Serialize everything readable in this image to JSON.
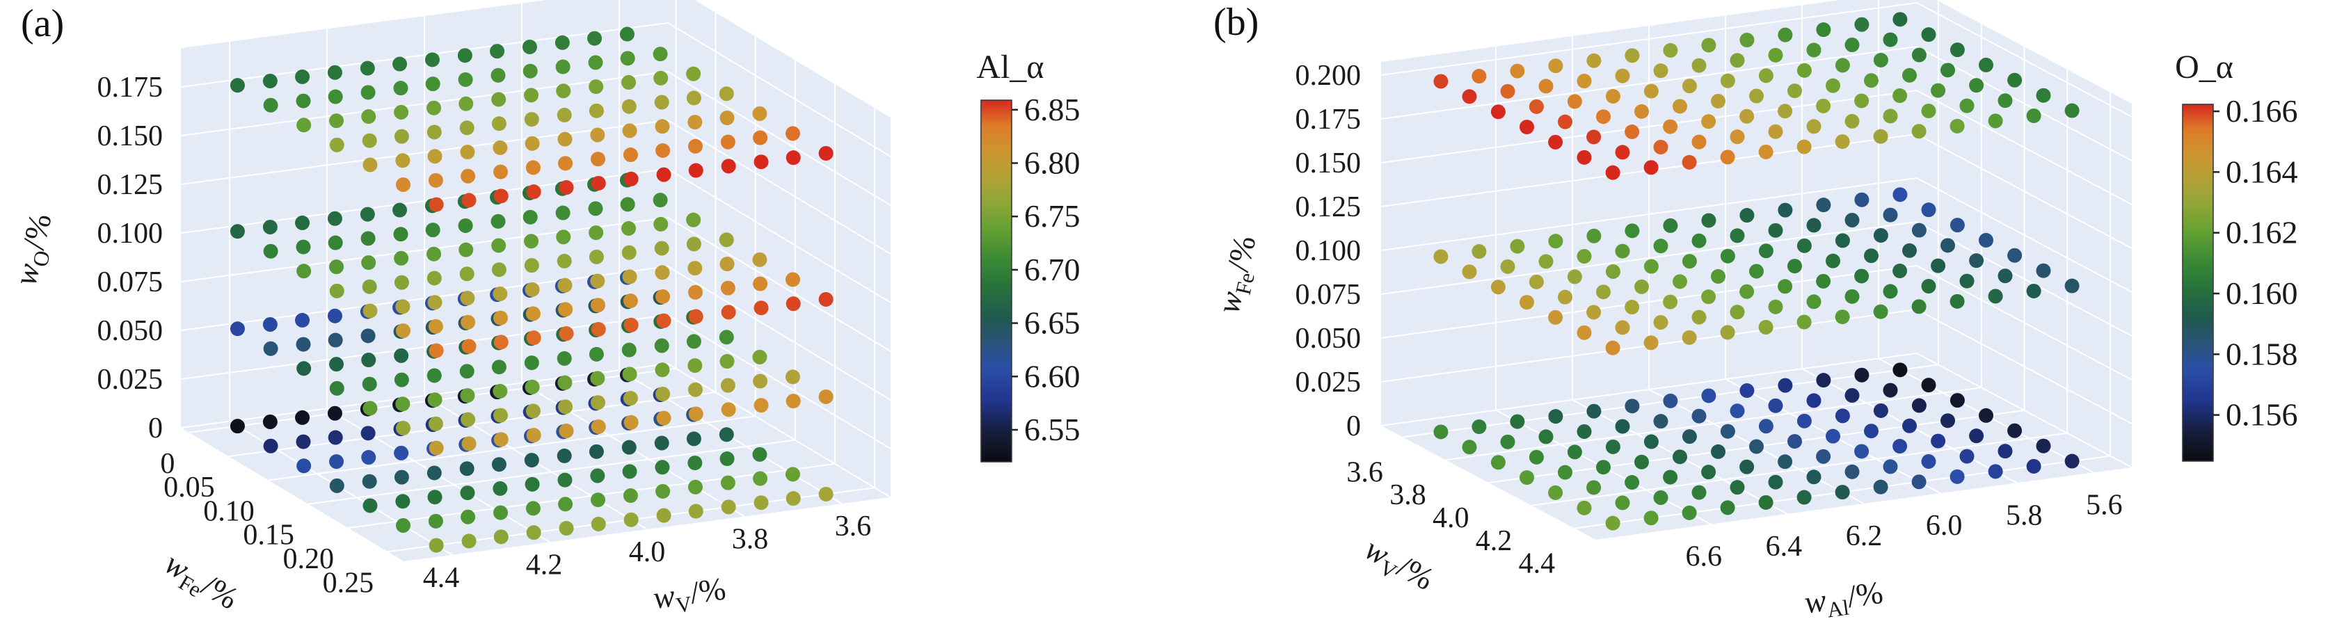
{
  "figure": {
    "background": "#ffffff",
    "pane_color": "#e4ebf6",
    "grid_color": "#ffffff",
    "text_color": "#1a1a1a",
    "colormap_stops": [
      [
        0.0,
        "#0b0c11"
      ],
      [
        0.08,
        "#161d3a"
      ],
      [
        0.17,
        "#21368e"
      ],
      [
        0.26,
        "#2b4fa8"
      ],
      [
        0.33,
        "#2a5378"
      ],
      [
        0.4,
        "#1f5a4e"
      ],
      [
        0.48,
        "#27713c"
      ],
      [
        0.56,
        "#3a8a35"
      ],
      [
        0.64,
        "#63a033"
      ],
      [
        0.72,
        "#90a636"
      ],
      [
        0.79,
        "#b4a238"
      ],
      [
        0.86,
        "#ce9530"
      ],
      [
        0.93,
        "#dd7b28"
      ],
      [
        1.0,
        "#d7281e"
      ]
    ]
  },
  "chart_data": [
    {
      "type": "scatter",
      "subtype": "scatter3d",
      "panel_label": "(a)",
      "colorbar": {
        "title": "Al_α",
        "tick_labels": [
          "6.85",
          "6.80",
          "6.75",
          "6.70",
          "6.65",
          "6.60",
          "6.55"
        ],
        "tick_values": [
          6.85,
          6.8,
          6.75,
          6.7,
          6.65,
          6.6,
          6.55
        ],
        "value_min": 6.52,
        "value_max": 6.859
      },
      "axes": {
        "z": {
          "label_pre": "w",
          "label_sub": "O",
          "label_post": "/%",
          "tick_labels": [
            "0.175",
            "0.150",
            "0.125",
            "0.100",
            "0.075",
            "0.050",
            "0.025",
            "0"
          ],
          "tick_values": [
            0.175,
            0.15,
            0.125,
            0.1,
            0.075,
            0.05,
            0.025,
            0
          ]
        },
        "depth": {
          "label_pre": "w",
          "label_sub": "Fe",
          "label_post": "/%",
          "tick_labels": [
            "0",
            "0.05",
            "0.10",
            "0.15",
            "0.20",
            "0.25"
          ],
          "tick_values": [
            0,
            0.05,
            0.1,
            0.15,
            0.2,
            0.25
          ]
        },
        "x": {
          "label_pre": "w",
          "label_sub": "V",
          "label_post": "/%",
          "tick_labels": [
            "4.4",
            "4.2",
            "4.0",
            "3.8",
            "3.6"
          ],
          "tick_values": [
            4.4,
            4.2,
            4.0,
            3.8,
            3.6
          ]
        }
      },
      "grid": {
        "x_values": [
          3.6,
          3.667,
          3.733,
          3.8,
          3.867,
          3.933,
          4.0,
          4.067,
          4.133,
          4.2,
          4.267,
          4.333,
          4.4
        ],
        "depth_values": [
          0,
          0.0417,
          0.0833,
          0.125,
          0.1667,
          0.2083,
          0.25
        ]
      },
      "layers": [
        {
          "z": 0,
          "t0": 0.08,
          "dv": 0.68,
          "du": -0.06
        },
        {
          "z": 0.05,
          "t0": 0.28,
          "dv": 0.6,
          "du": -0.05
        },
        {
          "z": 0.1,
          "t0": 0.5,
          "dv": 0.48,
          "du": -0.05
        },
        {
          "z": 0.175,
          "t0": 0.53,
          "dv": 0.49,
          "du": -0.05
        }
      ],
      "note": "Approximate digitisation: grids of (w_V x w_Fe) points at four w_O levels; marker colour encodes Al_α = value_min + t*(value_max-value_min), t = t0 + dv*depthFrac + du*xFrac"
    },
    {
      "type": "scatter",
      "subtype": "scatter3d",
      "panel_label": "(b)",
      "colorbar": {
        "title": "O_α",
        "tick_labels": [
          "0.166",
          "0.164",
          "0.162",
          "0.160",
          "0.158",
          "0.156"
        ],
        "tick_values": [
          0.166,
          0.164,
          0.162,
          0.16,
          0.158,
          0.156
        ],
        "value_min": 0.15448,
        "value_max": 0.16623
      },
      "axes": {
        "z": {
          "label_pre": "w",
          "label_sub": "Fe",
          "label_post": "/%",
          "tick_labels": [
            "0.200",
            "0.175",
            "0.150",
            "0.125",
            "0.100",
            "0.075",
            "0.050",
            "0.025",
            "0"
          ],
          "tick_values": [
            0.2,
            0.175,
            0.15,
            0.125,
            0.1,
            0.075,
            0.05,
            0.025,
            0
          ]
        },
        "depth": {
          "label_pre": "w",
          "label_sub": "V",
          "label_post": "/%",
          "tick_labels": [
            "3.6",
            "3.8",
            "4.0",
            "4.2",
            "4.4"
          ],
          "tick_values": [
            3.6,
            3.8,
            4.0,
            4.2,
            4.4
          ]
        },
        "x": {
          "label_pre": "w",
          "label_sub": "Al",
          "label_post": "/%",
          "tick_labels": [
            "6.6",
            "6.4",
            "6.2",
            "6.0",
            "5.8",
            "5.6"
          ],
          "tick_values": [
            6.6,
            6.4,
            6.2,
            6.0,
            5.8,
            5.6
          ]
        }
      },
      "grid": {
        "x_values": [
          5.6,
          5.7,
          5.8,
          5.9,
          6.0,
          6.1,
          6.2,
          6.3,
          6.4,
          6.5,
          6.6,
          6.7,
          6.8
        ],
        "depth_values": [
          3.6,
          3.733,
          3.867,
          4.0,
          4.133,
          4.267,
          4.4
        ]
      },
      "layers": [
        {
          "z": 0,
          "t0": 0.02,
          "dv": 0.1,
          "du": 0.55
        },
        {
          "z": 0.1,
          "t0": 0.26,
          "dv": 0.1,
          "du": 0.52
        },
        {
          "z": 0.2,
          "t0": 0.46,
          "dv": 0.07,
          "du": 0.52
        }
      ],
      "note": "Approximate digitisation: grids of (w_Al x w_V) points at three w_Fe levels; marker colour encodes O_α = value_min + t*(value_max-value_min), t = t0 + dv*depthFrac + du*xFrac"
    }
  ]
}
